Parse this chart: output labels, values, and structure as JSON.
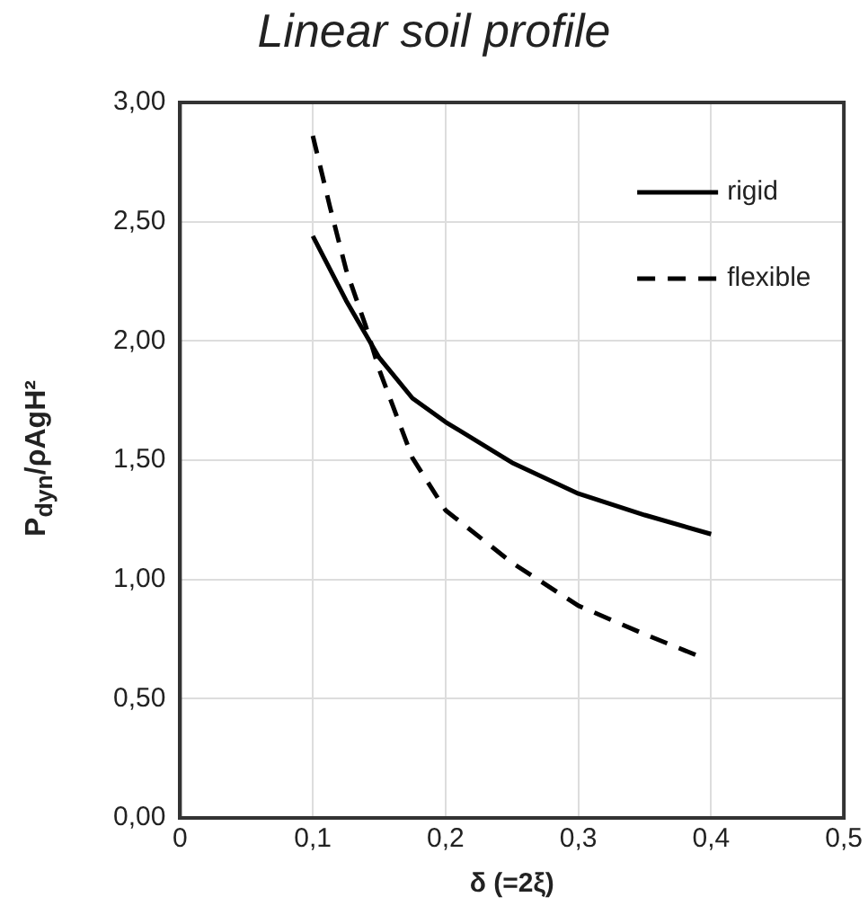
{
  "chart_data": {
    "type": "line",
    "title": "Linear soil profile",
    "xlabel": "δ (=2ξ)",
    "ylabel": "P$_{dyn}$/ρAgH²",
    "series": [
      {
        "name": "rigid",
        "color": "#000000",
        "line_style": "solid",
        "x": [
          0.1,
          0.125,
          0.15,
          0.175,
          0.2,
          0.25,
          0.3,
          0.35,
          0.4
        ],
        "values": [
          2.44,
          2.17,
          1.93,
          1.76,
          1.66,
          1.49,
          1.36,
          1.27,
          1.19
        ]
      },
      {
        "name": "flexible",
        "color": "#000000",
        "line_style": "dashed",
        "x": [
          0.1,
          0.113,
          0.125,
          0.14,
          0.15,
          0.175,
          0.2,
          0.25,
          0.3,
          0.35,
          0.39
        ],
        "values": [
          2.86,
          2.56,
          2.3,
          2.06,
          1.88,
          1.51,
          1.29,
          1.07,
          0.89,
          0.77,
          0.68
        ]
      }
    ],
    "xlim": [
      0,
      0.5
    ],
    "xticks": [
      {
        "value": 0,
        "label": "0"
      },
      {
        "value": 0.1,
        "label": "0,1"
      },
      {
        "value": 0.2,
        "label": "0,2"
      },
      {
        "value": 0.3,
        "label": "0,3"
      },
      {
        "value": 0.4,
        "label": "0,4"
      },
      {
        "value": 0.5,
        "label": "0,5"
      }
    ],
    "ylim": [
      0,
      3
    ],
    "yticks": [
      {
        "value": 0,
        "label": "0,00"
      },
      {
        "value": 0.5,
        "label": "0,50"
      },
      {
        "value": 1,
        "label": "1,00"
      },
      {
        "value": 1.5,
        "label": "1,50"
      },
      {
        "value": 2,
        "label": "2,00"
      },
      {
        "value": 2.5,
        "label": "2,50"
      },
      {
        "value": 3,
        "label": "3,00"
      }
    ],
    "grid": true,
    "legend": "top right",
    "marker": "none"
  }
}
